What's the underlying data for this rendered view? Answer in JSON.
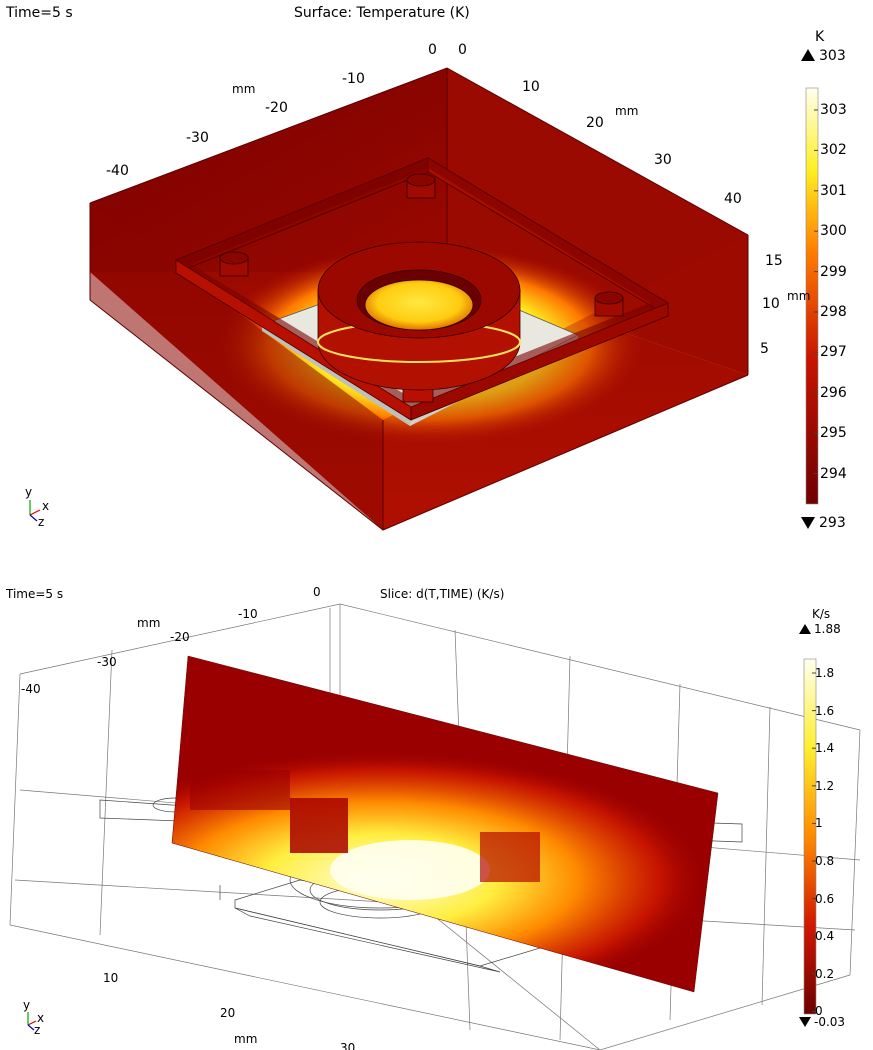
{
  "plot1": {
    "time_label": "Time=5 s",
    "title": "Surface: Temperature (K)",
    "unit": "K",
    "max_label": "303",
    "min_label": "293",
    "colorbar_ticks": [
      "303",
      "302",
      "301",
      "300",
      "299",
      "298",
      "297",
      "296",
      "295",
      "294"
    ],
    "unit_x": "mm",
    "unit_y": "mm",
    "x_ticks": [
      "-40",
      "-30",
      "-20",
      "-10",
      "0"
    ],
    "y_ticks": [
      "0",
      "10",
      "20",
      "30",
      "40"
    ],
    "z_ticks": [
      "15",
      "10",
      "5"
    ],
    "z_unit": "mm",
    "axis_labels": {
      "y": "y",
      "x": "x",
      "z": "z"
    },
    "colors": {
      "dark": "#6e0000",
      "mid": "#b81000",
      "orange": "#ff6a00",
      "yellow": "#ffee20",
      "white": "#ffffe8"
    }
  },
  "plot2": {
    "time_label": "Time=5 s",
    "title": "Slice: d(T,TIME) (K/s)",
    "unit": "K/s",
    "max_label": "1.88",
    "min_label": "-0.03",
    "colorbar_ticks": [
      "1.8",
      "1.6",
      "1.4",
      "1.2",
      "1",
      "0.8",
      "0.6",
      "0.4",
      "0.2",
      "0"
    ],
    "unit_top": "mm",
    "unit_bottom": "mm",
    "top_ticks": [
      "0",
      "-10",
      "-20",
      "-30",
      "-40"
    ],
    "bottom_ticks": [
      "10",
      "20",
      "30"
    ],
    "axis_labels": {
      "y": "y",
      "x": "x",
      "z": "z"
    }
  }
}
